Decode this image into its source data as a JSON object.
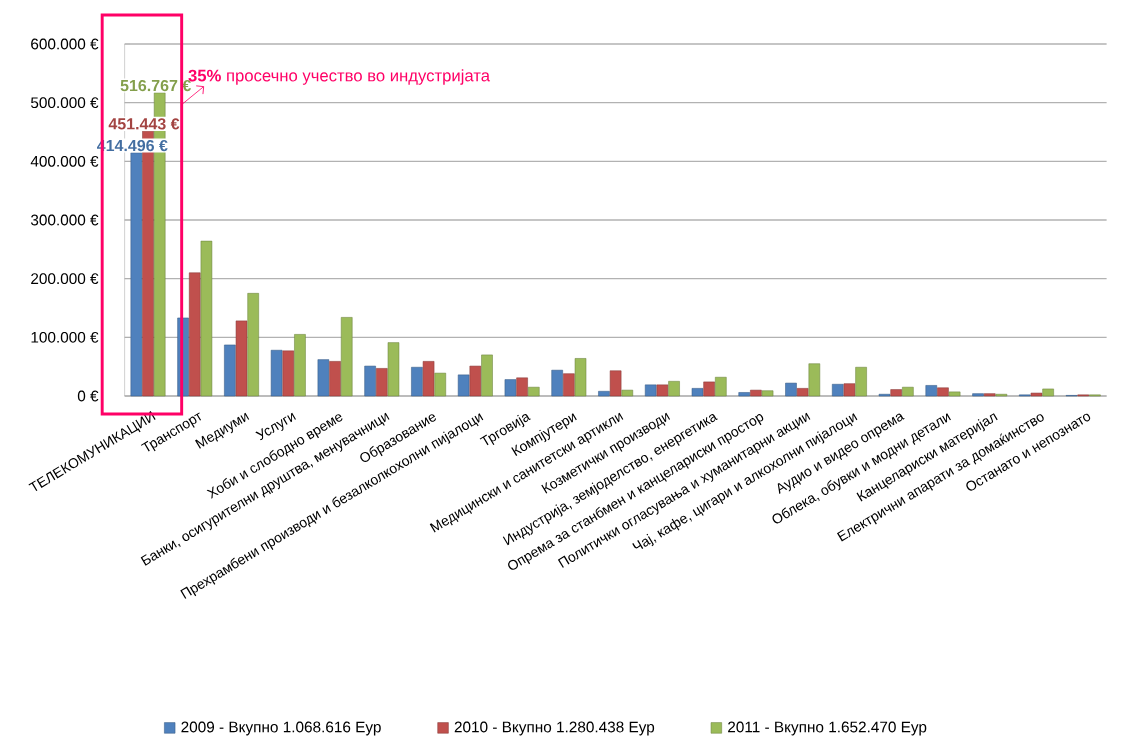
{
  "chart_data": {
    "type": "bar",
    "categories": [
      "ТЕЛЕКОМУНИКАЦИИ",
      "Транспорт",
      "Медиуми",
      "Услуги",
      "Хоби и слободно време",
      "Банки, осигурителни  друштва, менувачници",
      "Образование",
      "Прехрамбени  производи  и безалколкохолни  пијалоци",
      "Трговија",
      "Компјутери",
      "Медицински  и санитетски  артикли",
      "Козметички  производи",
      "Индустрија, земјоделство,  енергетика",
      "Опрема за станбмен  и канцелариски  простор",
      "Политички  огласувања  и хуманитарни  акции",
      "Чај, кафе, цигари  и алкохолни  пијалоци",
      "Аудио и видео опрема",
      "Облека, обувки и модни  детали",
      "Канцелариски  материјал",
      "Електрични  апарати за домаќинство",
      "Останато и непознато"
    ],
    "series": [
      {
        "name": "2009 - Вкупно 1.068.616 Еур",
        "color": "#4f81bd",
        "values": [
          414496,
          133000,
          87000,
          78000,
          62000,
          51000,
          49000,
          36000,
          28000,
          44000,
          8000,
          19000,
          13000,
          6000,
          22000,
          20000,
          3000,
          18000,
          4000,
          2000,
          1000
        ],
        "value_labels": [
          "414.496 €",
          null,
          null,
          null,
          null,
          null,
          null,
          null,
          null,
          null,
          null,
          null,
          null,
          null,
          null,
          null,
          null,
          null,
          null,
          null,
          null
        ]
      },
      {
        "name": "2010 - Вкупно 1.280.438 Еур",
        "color": "#c0504d",
        "values": [
          451443,
          210000,
          128000,
          77000,
          59000,
          47000,
          59000,
          51000,
          31000,
          38000,
          43000,
          19000,
          24000,
          10000,
          13000,
          21000,
          11000,
          14000,
          4000,
          5000,
          2000
        ],
        "value_labels": [
          "451.443 €",
          null,
          null,
          null,
          null,
          null,
          null,
          null,
          null,
          null,
          null,
          null,
          null,
          null,
          null,
          null,
          null,
          null,
          null,
          null,
          null
        ]
      },
      {
        "name": "2011 - Вкупно 1.652.470 Еур",
        "color": "#9bbb59",
        "values": [
          516767,
          264000,
          175000,
          105000,
          134000,
          91000,
          39000,
          70000,
          15000,
          64000,
          10000,
          25000,
          32000,
          9000,
          55000,
          49000,
          15000,
          7000,
          3000,
          12000,
          2000
        ],
        "value_labels": [
          "516.767 €",
          null,
          null,
          null,
          null,
          null,
          null,
          null,
          null,
          null,
          null,
          null,
          null,
          null,
          null,
          null,
          null,
          null,
          null,
          null,
          null
        ]
      }
    ],
    "ylim": [
      0,
      600000
    ],
    "yticks": [
      {
        "value": 0,
        "label": "0 €"
      },
      {
        "value": 100000,
        "label": "100.000 €"
      },
      {
        "value": 200000,
        "label": "200.000 €"
      },
      {
        "value": 300000,
        "label": "300.000 €"
      },
      {
        "value": 400000,
        "label": "400.000 €"
      },
      {
        "value": 500000,
        "label": "500.000 €"
      },
      {
        "value": 600000,
        "label": "600.000 €"
      }
    ],
    "grid": "y",
    "legend": "bottom",
    "annotations": [
      "**35%** просечно учество во индустријата"
    ]
  }
}
